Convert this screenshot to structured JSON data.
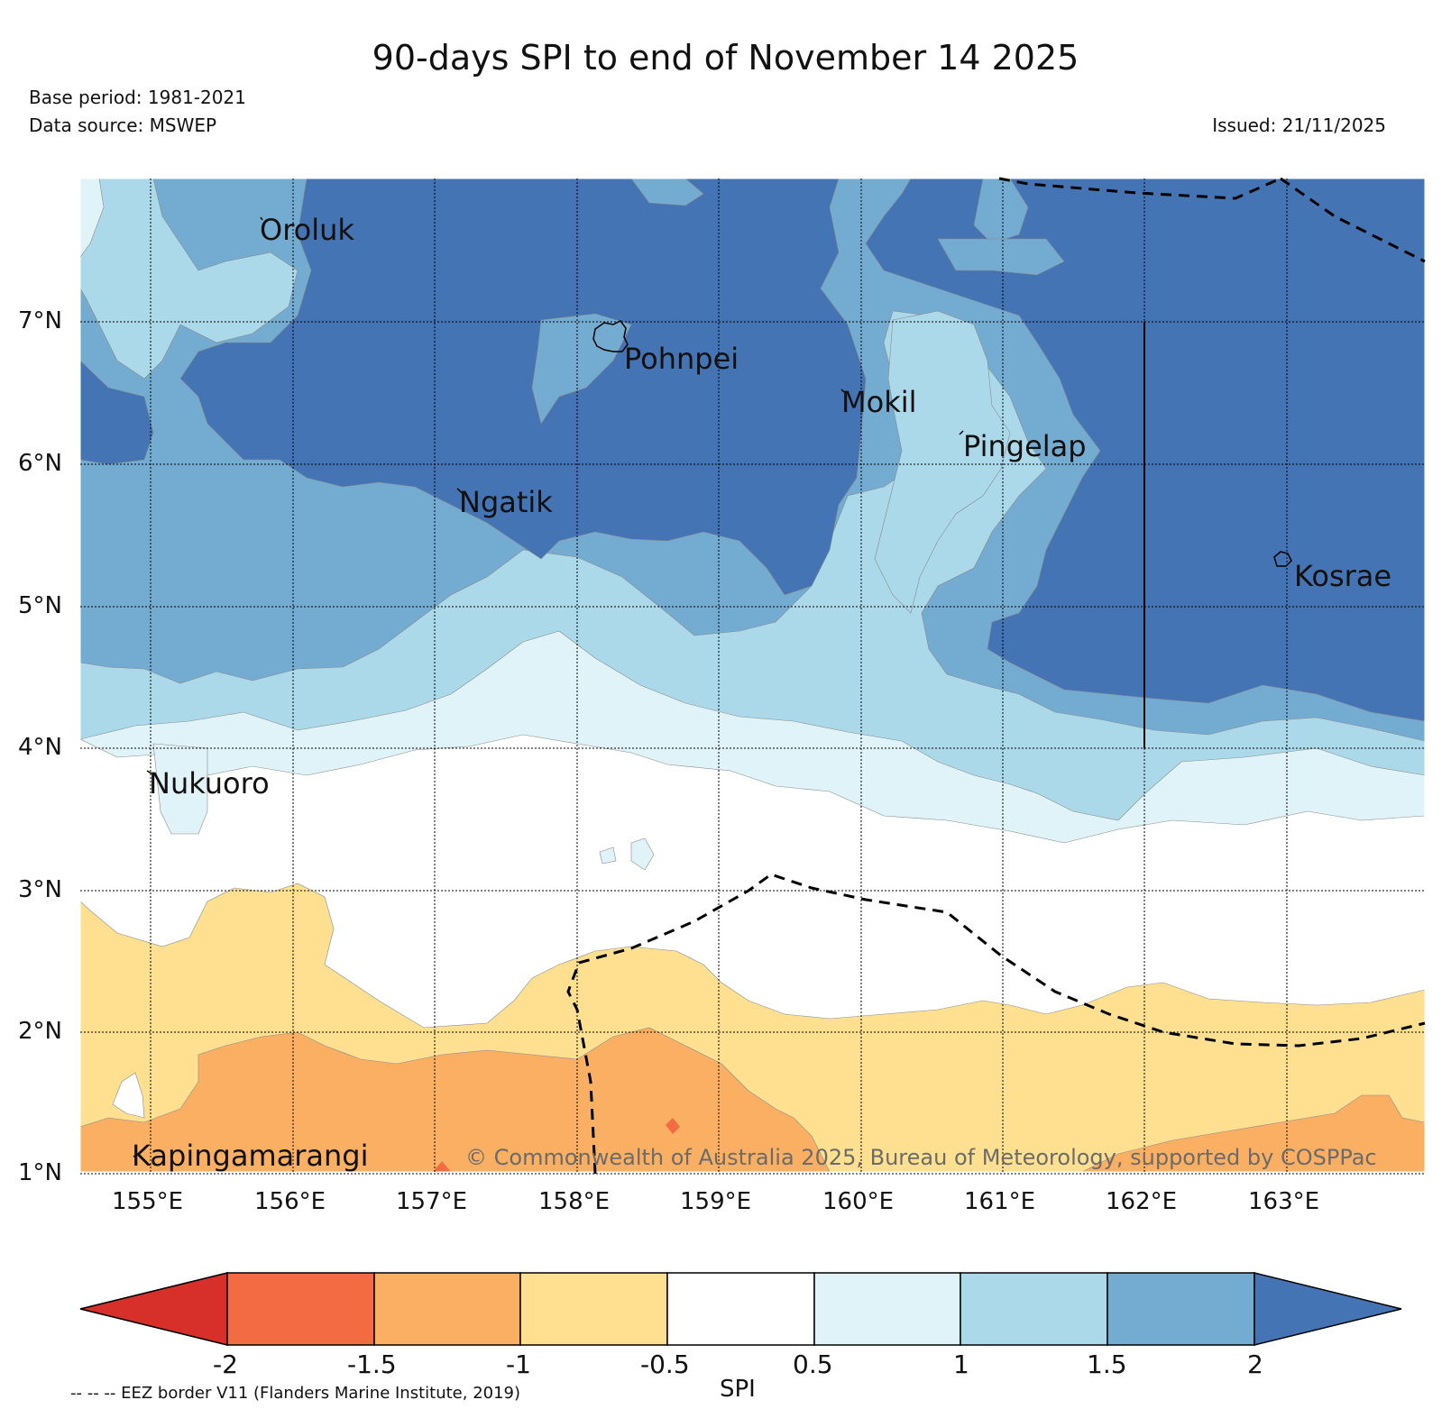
{
  "header": {
    "title": "90-days SPI to end of November 14 2025",
    "base_period": "Base period: 1981-2021",
    "data_source": "Data source: MSWEP",
    "issued": "Issued: 21/11/2025"
  },
  "map": {
    "lon_ticks": [
      "155°E",
      "156°E",
      "157°E",
      "158°E",
      "159°E",
      "160°E",
      "161°E",
      "162°E",
      "163°E"
    ],
    "lat_ticks": [
      "7°N",
      "6°N",
      "5°N",
      "4°N",
      "3°N",
      "2°N",
      "1°N"
    ],
    "places": [
      {
        "name": "Oroluk"
      },
      {
        "name": "Pohnpei"
      },
      {
        "name": "Mokil"
      },
      {
        "name": "Pingelap"
      },
      {
        "name": "Ngatik"
      },
      {
        "name": "Kosrae"
      },
      {
        "name": "Nukuoro"
      },
      {
        "name": "Kapingamarangi"
      }
    ],
    "copyright": "© Commonwealth of Australia 2025, Bureau of Meteorology, supported by COSPPac"
  },
  "colorbar": {
    "label": "SPI",
    "ticks": [
      "-2",
      "-1.5",
      "-1",
      "-0.5",
      "0.5",
      "1",
      "1.5",
      "2"
    ],
    "colors": [
      "#d7302a",
      "#f26b43",
      "#fbaf62",
      "#fee090",
      "#ffffff",
      "#e0f3f8",
      "#abd9e9",
      "#74abd1",
      "#4574b4"
    ]
  },
  "footnote": "-- -- -- EEZ border V11 (Flanders Marine Institute, 2019)"
}
